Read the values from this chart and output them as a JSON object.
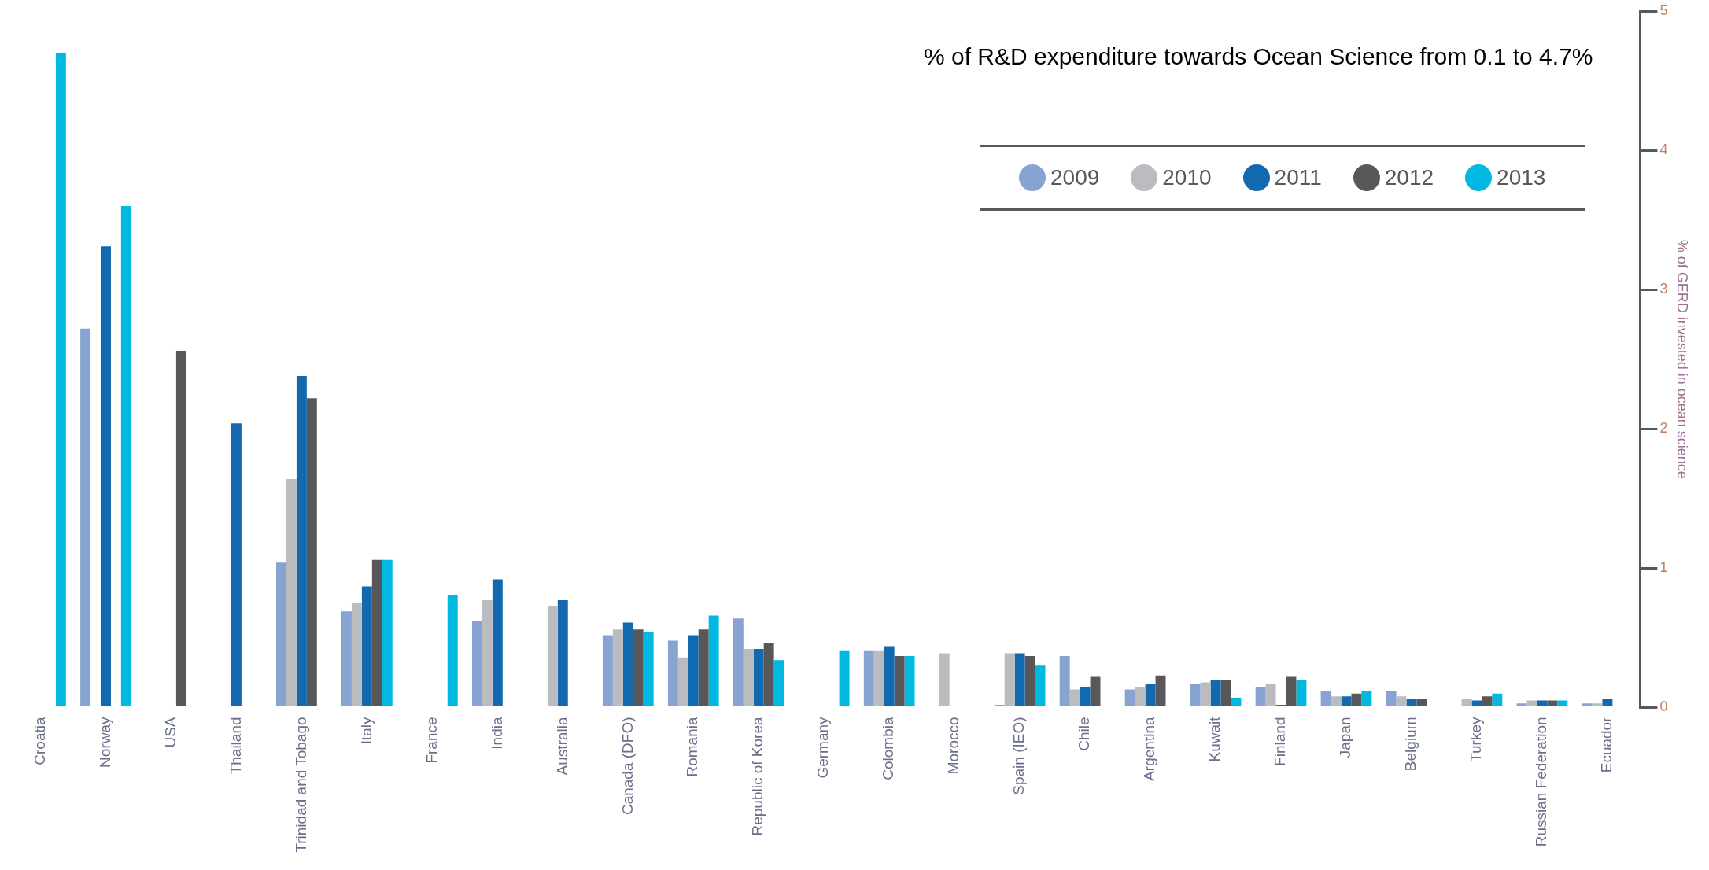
{
  "chart_data": {
    "type": "bar",
    "title": "% of R&D expenditure towards Ocean Science from 0.1 to 4.7%",
    "ylabel": "% of GERD invested in ocean science",
    "categories": [
      "Croatia",
      "Norway",
      "USA",
      "Thailand",
      "Trinidad and Tobago",
      "Italy",
      "France",
      "India",
      "Australia",
      "Canada (DFO)",
      "Romania",
      "Republic of Korea",
      "Germany",
      "Colombia",
      "Morocco",
      "Spain (IEO)",
      "Chile",
      "Argentina",
      "Kuwait",
      "Finland",
      "Japan",
      "Belgium",
      "Turkey",
      "Russian Federation",
      "Ecuador"
    ],
    "series": [
      {
        "name": "2009",
        "color": "#87a3d1",
        "values": [
          null,
          2.72,
          null,
          null,
          1.04,
          0.69,
          null,
          0.62,
          null,
          0.52,
          0.48,
          0.64,
          null,
          0.41,
          null,
          0.02,
          0.37,
          0.13,
          0.17,
          0.15,
          0.12,
          0.12,
          null,
          0.03,
          0.03
        ]
      },
      {
        "name": "2010",
        "color": "#bbbcc0",
        "values": [
          null,
          null,
          null,
          null,
          1.64,
          0.75,
          null,
          0.77,
          0.73,
          0.56,
          0.36,
          0.42,
          null,
          0.41,
          0.39,
          0.39,
          0.13,
          0.15,
          0.18,
          0.17,
          0.08,
          0.08,
          0.06,
          0.05,
          0.03
        ]
      },
      {
        "name": "2011",
        "color": "#1269b0",
        "values": [
          null,
          3.31,
          null,
          2.04,
          2.38,
          0.87,
          null,
          0.92,
          0.77,
          0.61,
          0.52,
          0.42,
          null,
          0.44,
          null,
          0.39,
          0.15,
          0.17,
          0.2,
          0.02,
          0.08,
          0.06,
          0.05,
          0.05,
          0.06
        ]
      },
      {
        "name": "2012",
        "color": "#58585a",
        "values": [
          null,
          null,
          2.56,
          null,
          2.22,
          1.06,
          null,
          null,
          null,
          0.56,
          0.56,
          0.46,
          null,
          0.37,
          null,
          0.37,
          0.22,
          0.23,
          0.2,
          0.22,
          0.1,
          0.06,
          0.08,
          0.05,
          null
        ]
      },
      {
        "name": "2013",
        "color": "#00b8e0",
        "values": [
          4.7,
          3.6,
          null,
          null,
          null,
          1.06,
          0.81,
          null,
          null,
          0.54,
          0.66,
          0.34,
          0.41,
          0.37,
          null,
          0.3,
          null,
          null,
          0.07,
          0.2,
          0.12,
          null,
          0.1,
          0.05,
          null
        ]
      }
    ],
    "ylim": [
      0,
      5
    ],
    "yticks": [
      0,
      1,
      2,
      3,
      4,
      5
    ],
    "grid": false,
    "legend": "top right"
  }
}
